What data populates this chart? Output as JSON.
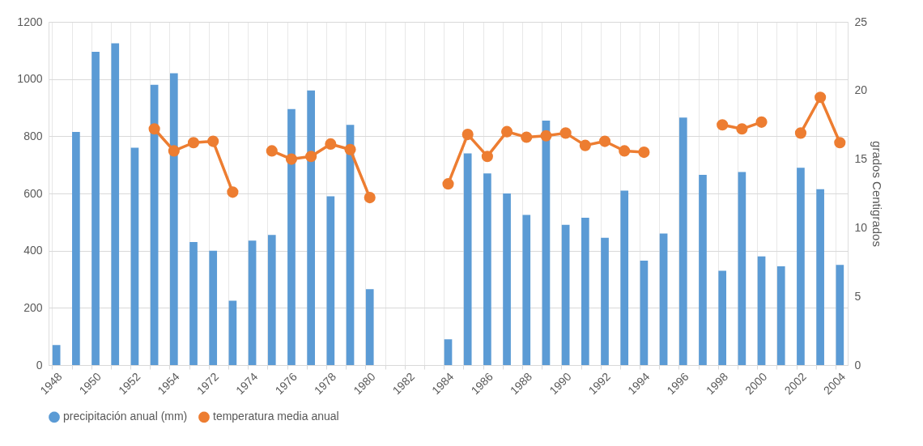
{
  "chart_data": {
    "type": "bar",
    "categories": [
      "1948",
      null,
      "1950",
      null,
      "1952",
      null,
      "1954",
      null,
      "1972",
      null,
      "1974",
      null,
      "1976",
      null,
      "1978",
      null,
      "1980",
      null,
      "1982",
      null,
      "1984",
      null,
      "1986",
      null,
      "1988",
      null,
      "1990",
      null,
      "1992",
      null,
      "1994",
      null,
      "1996",
      null,
      "1998",
      null,
      "2000",
      null,
      "2002",
      null,
      "2004"
    ],
    "series": [
      {
        "name": "precipitación anual (mm)",
        "color": "#5b9bd5",
        "values": [
          70,
          815,
          1095,
          1125,
          760,
          980,
          1020,
          430,
          400,
          225,
          435,
          455,
          895,
          960,
          590,
          840,
          265,
          null,
          null,
          null,
          90,
          740,
          670,
          600,
          525,
          855,
          490,
          515,
          445,
          610,
          365,
          460,
          865,
          665,
          330,
          675,
          380,
          345,
          690,
          615,
          350
        ]
      },
      {
        "name": "temperatura media anual",
        "type": "line",
        "axis": "y2",
        "color": "#ed7d31",
        "marker": "circle",
        "values": [
          null,
          null,
          null,
          null,
          null,
          17.2,
          15.6,
          16.2,
          16.3,
          12.6,
          null,
          15.6,
          15.0,
          15.2,
          16.1,
          15.7,
          12.2,
          null,
          null,
          null,
          13.2,
          16.8,
          15.2,
          17.0,
          16.6,
          16.7,
          16.9,
          16.0,
          16.3,
          15.6,
          15.5,
          null,
          null,
          null,
          17.5,
          17.2,
          17.7,
          null,
          16.9,
          19.5,
          16.2
        ]
      }
    ],
    "ylim": [
      0,
      1200
    ],
    "yticks": [
      0,
      200,
      400,
      600,
      800,
      1000,
      1200
    ],
    "y2lim": [
      0,
      25
    ],
    "y2ticks": [
      0,
      5,
      10,
      15,
      20,
      25
    ],
    "y2label": "grados Centigrados",
    "grid": true,
    "legend": "bottom"
  }
}
